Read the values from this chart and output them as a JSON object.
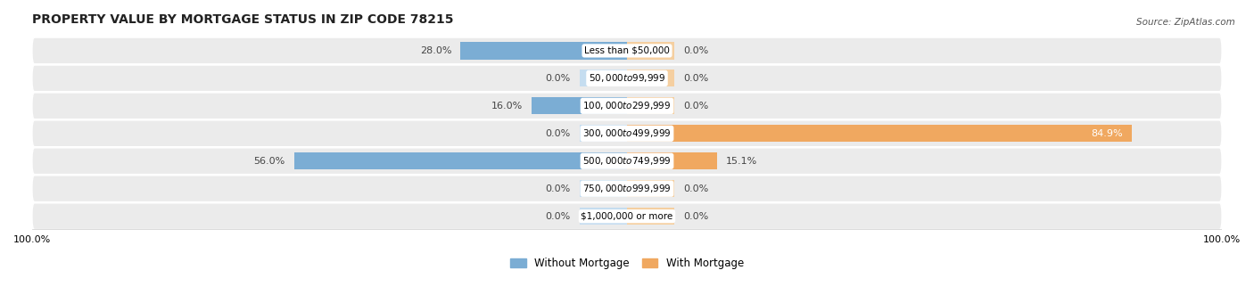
{
  "title": "PROPERTY VALUE BY MORTGAGE STATUS IN ZIP CODE 78215",
  "source": "Source: ZipAtlas.com",
  "categories": [
    "Less than $50,000",
    "$50,000 to $99,999",
    "$100,000 to $299,999",
    "$300,000 to $499,999",
    "$500,000 to $749,999",
    "$750,000 to $999,999",
    "$1,000,000 or more"
  ],
  "without_mortgage": [
    28.0,
    0.0,
    16.0,
    0.0,
    56.0,
    0.0,
    0.0
  ],
  "with_mortgage": [
    0.0,
    0.0,
    0.0,
    84.9,
    15.1,
    0.0,
    0.0
  ],
  "bar_color_without": "#7badd4",
  "bar_color_with": "#f0a860",
  "bar_color_without_light": "#c5ddf0",
  "bar_color_with_light": "#f5cfa0",
  "bg_row_color": "#e8e8e8",
  "bg_row_color_alt": "#f0f0f0",
  "title_fontsize": 10,
  "label_fontsize": 8,
  "category_fontsize": 7.5,
  "axis_max": 100,
  "stub_size": 8.0,
  "legend_label_without": "Without Mortgage",
  "legend_label_with": "With Mortgage"
}
